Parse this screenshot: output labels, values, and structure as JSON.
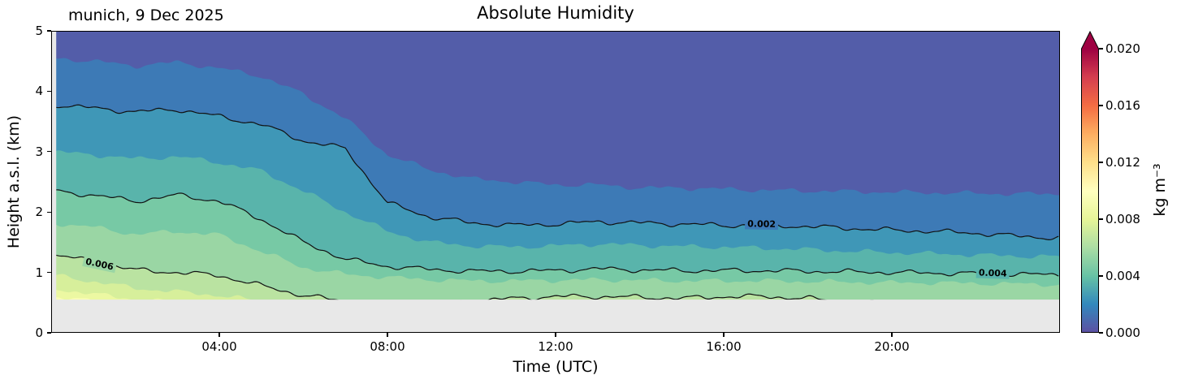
{
  "chart_data": {
    "type": "heatmap",
    "title": "Absolute Humidity",
    "annotation": "munich, 9 Dec 2025",
    "xlabel": "Time (UTC)",
    "ylabel": "Height a.s.l. (km)",
    "x_range": [
      0,
      24
    ],
    "ylim": [
      0,
      5
    ],
    "value_range": [
      0,
      0.02
    ],
    "value_unit": "kg m⁻³",
    "base_height_km": 0.55,
    "data_start_hour": 0.12,
    "contour_step": 0.001,
    "nodata_color": "#e8e8e8",
    "colormap": {
      "name": "Spectral_r",
      "anchors": [
        "#5e4fa2",
        "#3288bd",
        "#66c2a5",
        "#abdda4",
        "#e6f598",
        "#ffffbf",
        "#fee08b",
        "#fdae61",
        "#f46d43",
        "#d53e4f",
        "#9e0142"
      ]
    },
    "style": {
      "contour_jitter_km": 0.05,
      "contour_line_color": "#111111"
    },
    "x_ticks": [
      {
        "hour": 4,
        "label": "04:00"
      },
      {
        "hour": 8,
        "label": "08:00"
      },
      {
        "hour": 12,
        "label": "12:00"
      },
      {
        "hour": 16,
        "label": "16:00"
      },
      {
        "hour": 20,
        "label": "20:00"
      }
    ],
    "y_ticks": [
      {
        "km": 0,
        "label": "0"
      },
      {
        "km": 1,
        "label": "1"
      },
      {
        "km": 2,
        "label": "2"
      },
      {
        "km": 3,
        "label": "3"
      },
      {
        "km": 4,
        "label": "4"
      },
      {
        "km": 5,
        "label": "5"
      }
    ],
    "colorbar": {
      "label": "kg m⁻³",
      "extend": "max",
      "ticks": [
        {
          "value": 0.0,
          "label": "0.000"
        },
        {
          "value": 0.004,
          "label": "0.004"
        },
        {
          "value": 0.008,
          "label": "0.008"
        },
        {
          "value": 0.012,
          "label": "0.012"
        },
        {
          "value": 0.016,
          "label": "0.016"
        },
        {
          "value": 0.02,
          "label": "0.020"
        }
      ]
    },
    "hours": [
      0,
      1,
      2,
      3,
      4,
      5,
      6,
      7,
      8,
      9,
      10,
      11,
      12,
      13,
      14,
      15,
      16,
      17,
      18,
      19,
      20,
      21,
      22,
      23,
      24
    ],
    "contours": [
      {
        "level": 0.001,
        "heights_km": [
          4.55,
          4.5,
          4.42,
          4.48,
          4.38,
          4.25,
          3.95,
          3.55,
          2.95,
          2.7,
          2.55,
          2.5,
          2.45,
          2.45,
          2.4,
          2.4,
          2.38,
          2.36,
          2.35,
          2.34,
          2.33,
          2.32,
          2.31,
          2.3,
          2.3
        ]
      },
      {
        "level": 0.002,
        "heights_km": [
          3.78,
          3.72,
          3.66,
          3.7,
          3.58,
          3.45,
          3.18,
          3.05,
          2.15,
          1.92,
          1.82,
          1.78,
          1.8,
          1.84,
          1.82,
          1.8,
          1.78,
          1.78,
          1.76,
          1.73,
          1.7,
          1.68,
          1.65,
          1.6,
          1.57
        ]
      },
      {
        "level": 0.003,
        "heights_km": [
          3.0,
          2.95,
          2.88,
          2.92,
          2.82,
          2.68,
          2.35,
          2.0,
          1.68,
          1.5,
          1.44,
          1.42,
          1.44,
          1.47,
          1.45,
          1.43,
          1.42,
          1.4,
          1.38,
          1.35,
          1.33,
          1.31,
          1.29,
          1.27,
          1.26
        ]
      },
      {
        "level": 0.004,
        "heights_km": [
          2.35,
          2.28,
          2.18,
          2.28,
          2.18,
          1.88,
          1.5,
          1.22,
          1.1,
          1.05,
          1.02,
          1.02,
          1.03,
          1.06,
          1.04,
          1.03,
          1.03,
          1.03,
          1.02,
          1.01,
          1.0,
          0.99,
          0.98,
          0.97,
          0.96
        ]
      },
      {
        "level": 0.005,
        "heights_km": [
          1.82,
          1.75,
          1.63,
          1.68,
          1.62,
          1.35,
          1.08,
          0.97,
          0.92,
          0.88,
          0.86,
          0.86,
          0.87,
          0.88,
          0.87,
          0.86,
          0.86,
          0.86,
          0.85,
          0.84,
          0.83,
          0.83,
          0.82,
          0.81,
          0.8
        ]
      },
      {
        "level": 0.006,
        "heights_km": [
          1.3,
          1.18,
          1.04,
          1.0,
          0.95,
          0.78,
          0.62,
          0.52,
          0.5,
          0.5,
          0.52,
          0.57,
          0.6,
          0.6,
          0.59,
          0.57,
          0.6,
          0.6,
          0.57,
          0.5,
          0.5,
          0.5,
          0.5,
          0.5,
          0.5
        ]
      },
      {
        "level": 0.007,
        "heights_km": [
          0.96,
          0.85,
          0.74,
          0.68,
          0.62,
          0.52,
          0.45,
          0.42,
          0.42,
          0.42,
          0.44,
          0.46,
          0.48,
          0.48,
          0.47,
          0.46,
          0.47,
          0.47,
          0.46,
          0.42,
          0.42,
          0.42,
          0.42,
          0.42,
          0.42
        ]
      },
      {
        "level": 0.008,
        "heights_km": [
          0.74,
          0.64,
          0.56,
          0.5,
          0.46,
          0.4,
          0.35,
          0.33,
          0.33,
          0.33,
          0.34,
          0.35,
          0.36,
          0.36,
          0.36,
          0.35,
          0.36,
          0.36,
          0.35,
          0.33,
          0.33,
          0.33,
          0.33,
          0.33,
          0.33
        ]
      },
      {
        "level": 0.009,
        "heights_km": [
          0.6,
          0.52,
          0.45,
          0.4,
          0.37,
          0.33,
          0.3,
          0.29,
          0.29,
          0.29,
          0.3,
          0.3,
          0.31,
          0.31,
          0.31,
          0.3,
          0.31,
          0.31,
          0.3,
          0.29,
          0.29,
          0.29,
          0.29,
          0.29,
          0.29
        ]
      }
    ],
    "labeled_contours": [
      {
        "level": 0.006,
        "text": "0.006",
        "at_hour": 1.15,
        "rotation_deg": 12
      },
      {
        "level": 0.002,
        "text": "0.002",
        "at_hour": 16.9,
        "rotation_deg": 1
      },
      {
        "level": 0.004,
        "text": "0.004",
        "at_hour": 22.4,
        "rotation_deg": 2
      }
    ]
  }
}
